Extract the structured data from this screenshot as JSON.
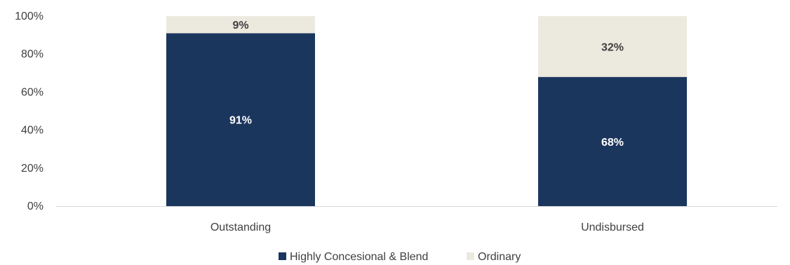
{
  "chart_data": {
    "type": "bar",
    "stacked": true,
    "categories": [
      "Outstanding",
      "Undisbursed"
    ],
    "series": [
      {
        "name": "Highly Concesional & Blend",
        "values": [
          91,
          68
        ],
        "labels": [
          "91%",
          "68%"
        ],
        "color": "#1b365d",
        "label_color": "#ffffff"
      },
      {
        "name": "Ordinary",
        "values": [
          9,
          32
        ],
        "labels": [
          "9%",
          "32%"
        ],
        "color": "#ece9df",
        "label_color": "#404040"
      }
    ],
    "ylim": [
      0,
      100
    ],
    "yticks": [
      0,
      20,
      40,
      60,
      80,
      100
    ],
    "ytick_labels": [
      "0%",
      "20%",
      "40%",
      "60%",
      "80%",
      "100%"
    ],
    "title": "",
    "xlabel": "",
    "ylabel": "",
    "grid": false,
    "legend_position": "bottom"
  }
}
